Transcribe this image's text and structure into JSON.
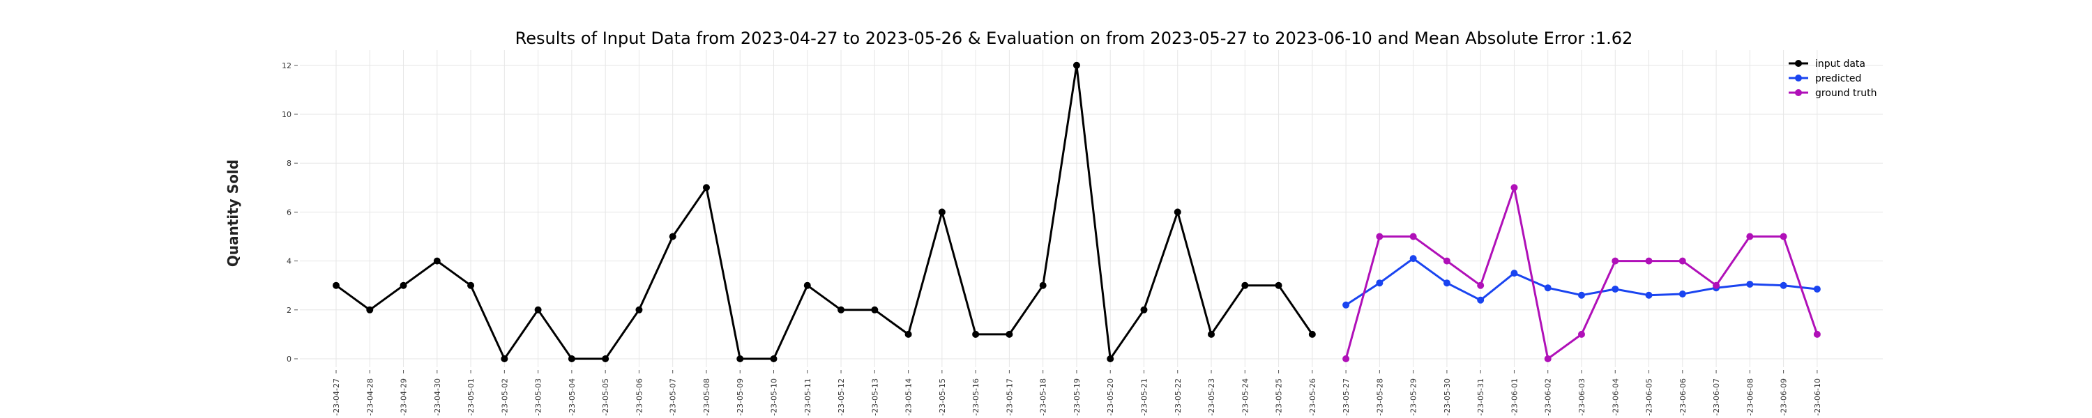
{
  "chart_data": {
    "type": "line",
    "title": "Results of Input Data from 2023-04-27 to 2023-05-26 & Evaluation on from 2023-05-27 to 2023-06-10 and Mean Absolute Error  :1.62",
    "xlabel": "",
    "ylabel": "Quantity Sold",
    "ylim": [
      -0.3,
      12.6
    ],
    "yticks": [
      0,
      2,
      4,
      6,
      8,
      10,
      12
    ],
    "grid": true,
    "legend_position": "top-right",
    "x": [
      "2023-04-27",
      "2023-04-28",
      "2023-04-29",
      "2023-04-30",
      "2023-05-01",
      "2023-05-02",
      "2023-05-03",
      "2023-05-04",
      "2023-05-05",
      "2023-05-06",
      "2023-05-07",
      "2023-05-08",
      "2023-05-09",
      "2023-05-10",
      "2023-05-11",
      "2023-05-12",
      "2023-05-13",
      "2023-05-14",
      "2023-05-15",
      "2023-05-16",
      "2023-05-17",
      "2023-05-18",
      "2023-05-19",
      "2023-05-20",
      "2023-05-21",
      "2023-05-22",
      "2023-05-23",
      "2023-05-24",
      "2023-05-25",
      "2023-05-26",
      "2023-05-27",
      "2023-05-28",
      "2023-05-29",
      "2023-05-30",
      "2023-05-31",
      "2023-06-01",
      "2023-06-02",
      "2023-06-03",
      "2023-06-04",
      "2023-06-05",
      "2023-06-06",
      "2023-06-07",
      "2023-06-08",
      "2023-06-09",
      "2023-06-10"
    ],
    "xtick_labels": [
      "-23-04-27",
      "-23-04-28",
      "-23-04-29",
      "-23-04-30",
      "-23-05-01",
      "-23-05-02",
      "-23-05-03",
      "-23-05-04",
      "-23-05-05",
      "-23-05-06",
      "-23-05-07",
      "-23-05-08",
      "-23-05-09",
      "-23-05-10",
      "-23-05-11",
      "-23-05-12",
      "-23-05-13",
      "-23-05-14",
      "-23-05-15",
      "-23-05-16",
      "-23-05-17",
      "-23-05-18",
      "-23-05-19",
      "-23-05-20",
      "-23-05-21",
      "-23-05-22",
      "-23-05-23",
      "-23-05-24",
      "-23-05-25",
      "-23-05-26",
      "-23-05-27",
      "-23-05-28",
      "-23-05-29",
      "-23-05-30",
      "-23-05-31",
      "-23-06-01",
      "-23-06-02",
      "-23-06-03",
      "-23-06-04",
      "-23-06-05",
      "-23-06-06",
      "-23-06-07",
      "-23-06-08",
      "-23-06-09",
      "-23-06-10"
    ],
    "series": [
      {
        "name": "input data",
        "color": "#000000",
        "x": [
          "2023-04-27",
          "2023-04-28",
          "2023-04-29",
          "2023-04-30",
          "2023-05-01",
          "2023-05-02",
          "2023-05-03",
          "2023-05-04",
          "2023-05-05",
          "2023-05-06",
          "2023-05-07",
          "2023-05-08",
          "2023-05-09",
          "2023-05-10",
          "2023-05-11",
          "2023-05-12",
          "2023-05-13",
          "2023-05-14",
          "2023-05-15",
          "2023-05-16",
          "2023-05-17",
          "2023-05-18",
          "2023-05-19",
          "2023-05-20",
          "2023-05-21",
          "2023-05-22",
          "2023-05-23",
          "2023-05-24",
          "2023-05-25",
          "2023-05-26"
        ],
        "values": [
          3,
          2,
          3,
          4,
          3,
          0,
          2,
          0,
          0,
          2,
          5,
          7,
          0,
          0,
          3,
          2,
          2,
          1,
          6,
          1,
          1,
          3,
          12,
          0,
          2,
          6,
          1,
          3,
          3,
          1
        ]
      },
      {
        "name": "predicted",
        "color": "#1a44f0",
        "x": [
          "2023-05-27",
          "2023-05-28",
          "2023-05-29",
          "2023-05-30",
          "2023-05-31",
          "2023-06-01",
          "2023-06-02",
          "2023-06-03",
          "2023-06-04",
          "2023-06-05",
          "2023-06-06",
          "2023-06-07",
          "2023-06-08",
          "2023-06-09",
          "2023-06-10"
        ],
        "values": [
          2.2,
          3.1,
          4.1,
          3.1,
          2.4,
          3.5,
          2.9,
          2.6,
          2.85,
          2.6,
          2.65,
          2.9,
          3.05,
          3.0,
          2.85
        ]
      },
      {
        "name": "ground truth",
        "color": "#b010b8",
        "x": [
          "2023-05-27",
          "2023-05-28",
          "2023-05-29",
          "2023-05-30",
          "2023-05-31",
          "2023-06-01",
          "2023-06-02",
          "2023-06-03",
          "2023-06-04",
          "2023-06-05",
          "2023-06-06",
          "2023-06-07",
          "2023-06-08",
          "2023-06-09",
          "2023-06-10"
        ],
        "values": [
          0,
          5,
          5,
          4,
          3,
          7,
          0,
          1,
          4,
          4,
          4,
          3,
          5,
          5,
          1
        ]
      }
    ]
  }
}
